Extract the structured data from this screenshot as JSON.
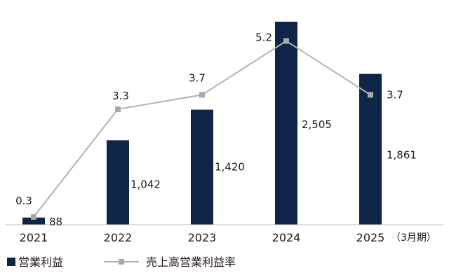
{
  "chart_data": {
    "type": "bar",
    "categories": [
      "2021",
      "2022",
      "2023",
      "2024",
      "2025"
    ],
    "x_unit_label": "（3月期）",
    "series": [
      {
        "name": "営業利益",
        "kind": "bar",
        "color": "#0e2547",
        "values": [
          88,
          1042,
          1420,
          2505,
          1861
        ],
        "labels": [
          "88",
          "1,042",
          "1,420",
          "2,505",
          "1,861"
        ]
      },
      {
        "name": "売上高営業利益率",
        "kind": "line",
        "color": "#b3b3b3",
        "values": [
          0.3,
          3.3,
          3.7,
          5.2,
          3.7
        ],
        "labels": [
          "0.3",
          "3.3",
          "3.7",
          "5.2",
          "3.7"
        ]
      }
    ],
    "legend_position": "bottom-left",
    "grid": false
  }
}
